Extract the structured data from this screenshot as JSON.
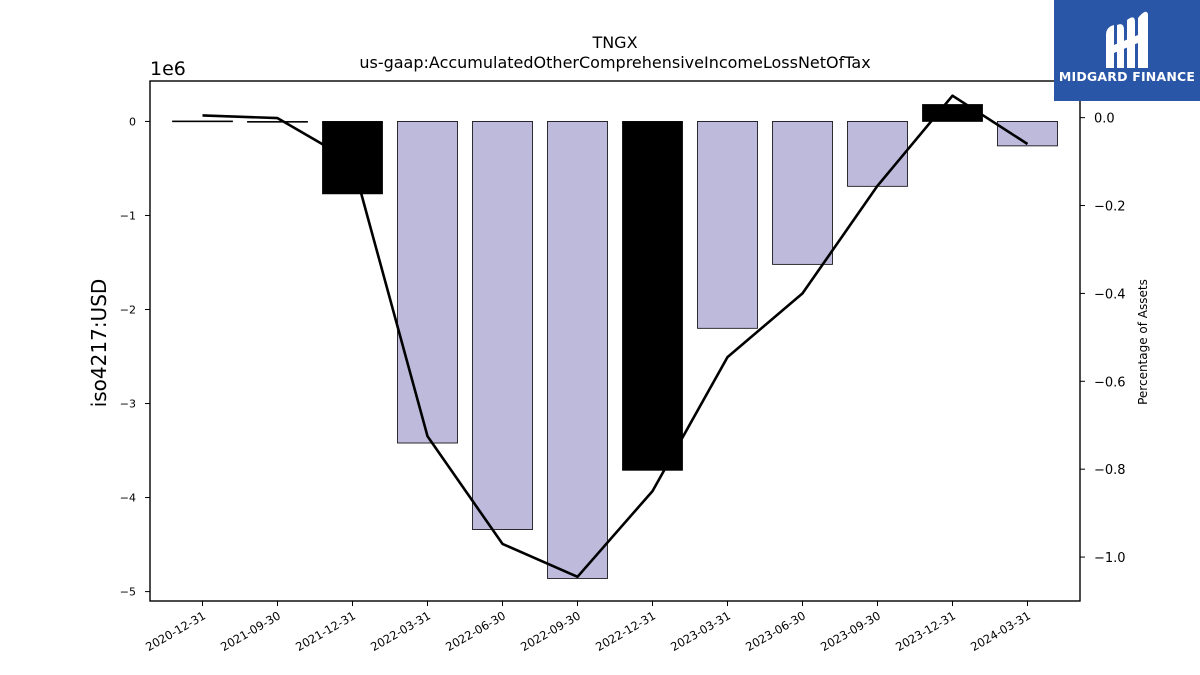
{
  "chart_data": {
    "type": "bar",
    "title": "TNGX",
    "subtitle": "us-gaap:AccumulatedOtherComprehensiveIncomeLossNetOfTax",
    "ylabel": "iso4217:USD",
    "y2label": "Percentage of Assets",
    "y_offset_label": "1e6",
    "categories": [
      "2020-12-31",
      "2021-09-30",
      "2021-12-31",
      "2022-03-31",
      "2022-06-30",
      "2022-09-30",
      "2022-12-31",
      "2023-03-31",
      "2023-06-30",
      "2023-09-30",
      "2023-12-31",
      "2024-03-31"
    ],
    "values": [
      5000,
      -4000,
      -770000,
      -3420000,
      -4340000,
      -4860000,
      -3710000,
      -2200000,
      -1520000,
      -690000,
      180000,
      -260000
    ],
    "bar_colors": [
      "#bebadc",
      "#bebadc",
      "#000000",
      "#bebadc",
      "#bebadc",
      "#bebadc",
      "#000000",
      "#bebadc",
      "#bebadc",
      "#bebadc",
      "#000000",
      "#bebadc"
    ],
    "line_values": [
      0.005,
      -0.001,
      -0.1,
      -0.725,
      -0.97,
      -1.045,
      -0.85,
      -0.545,
      -0.4,
      -0.155,
      0.05,
      -0.06
    ],
    "ylim": [
      -5100000,
      430000
    ],
    "y2lim": [
      -1.1,
      0.0834
    ],
    "yticks": [
      0,
      -1,
      -2,
      -3,
      -4,
      -5
    ],
    "y2ticks": [
      0.0,
      -0.2,
      -0.4,
      -0.6,
      -0.8,
      -1.0
    ],
    "ytick_labels": [
      "0",
      "−1",
      "−2",
      "−3",
      "−4",
      "−5"
    ],
    "y2tick_labels": [
      "0.0",
      "−0.2",
      "−0.4",
      "−0.6",
      "−0.8",
      "−1.0"
    ],
    "line_color": "#000000",
    "grid": false
  },
  "logo": {
    "text": "MIDGARD FINANCE",
    "bg_color": "#2a56a8"
  }
}
